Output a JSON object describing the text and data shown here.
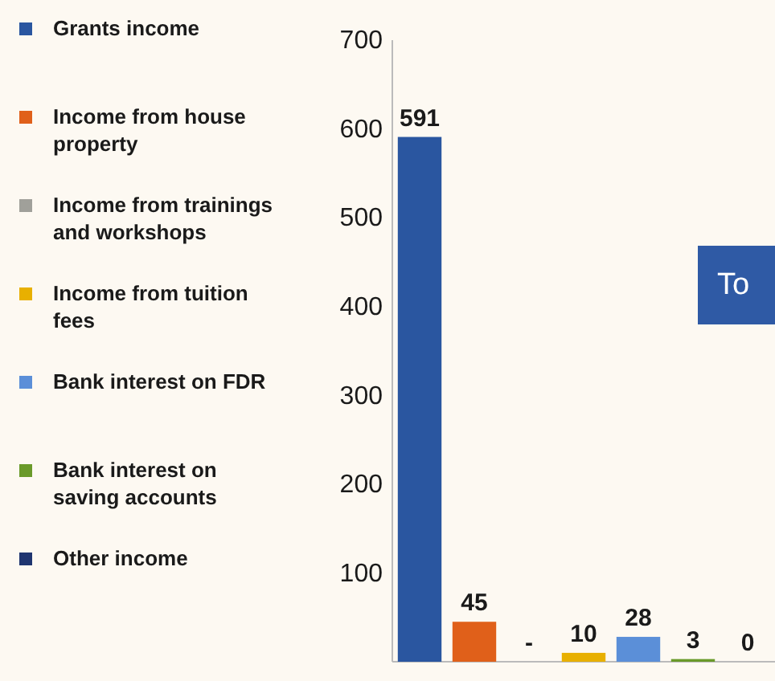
{
  "chart_data": {
    "type": "bar",
    "stacked": true,
    "categories": [
      null,
      null,
      null,
      null,
      null,
      null,
      null
    ],
    "series": [
      {
        "name": "Grants income",
        "color": "#2a56a0",
        "values": [
          591,
          null,
          null,
          null,
          null,
          null,
          null
        ],
        "value_labels": [
          "591",
          null,
          null,
          null,
          null,
          null,
          null
        ]
      },
      {
        "name": "Income from house property",
        "color": "#e0601a",
        "values": [
          null,
          45,
          null,
          null,
          null,
          null,
          null
        ],
        "value_labels": [
          null,
          "45",
          null,
          null,
          null,
          null,
          null
        ]
      },
      {
        "name": "Income from trainings and workshops",
        "color": "#a0a09a",
        "values": [
          null,
          null,
          0,
          null,
          null,
          null,
          null
        ],
        "value_labels": [
          null,
          null,
          "-",
          null,
          null,
          null,
          null
        ]
      },
      {
        "name": "Income from tuition fees",
        "color": "#e8b000",
        "values": [
          null,
          null,
          null,
          10,
          null,
          null,
          null
        ],
        "value_labels": [
          null,
          null,
          null,
          "10",
          null,
          null,
          null
        ]
      },
      {
        "name": "Bank interest on FDR",
        "color": "#5b8fd8",
        "values": [
          null,
          null,
          null,
          null,
          28,
          null,
          null
        ],
        "value_labels": [
          null,
          null,
          null,
          null,
          "28",
          null,
          null
        ]
      },
      {
        "name": "Bank interest on saving accounts",
        "color": "#6a9a2a",
        "values": [
          null,
          null,
          null,
          null,
          null,
          3,
          null
        ],
        "value_labels": [
          null,
          null,
          null,
          null,
          null,
          "3",
          null
        ]
      },
      {
        "name": "Other income",
        "color": "#1f3570",
        "values": [
          null,
          null,
          null,
          null,
          null,
          null,
          0
        ],
        "value_labels": [
          null,
          null,
          null,
          null,
          null,
          null,
          "0"
        ]
      }
    ],
    "ylim": [
      0,
      700
    ],
    "yticks": [
      100,
      200,
      300,
      400,
      500,
      600,
      700
    ],
    "tick_labels": "y",
    "legend": "left",
    "grid": false,
    "annotations": [
      "To"
    ]
  }
}
